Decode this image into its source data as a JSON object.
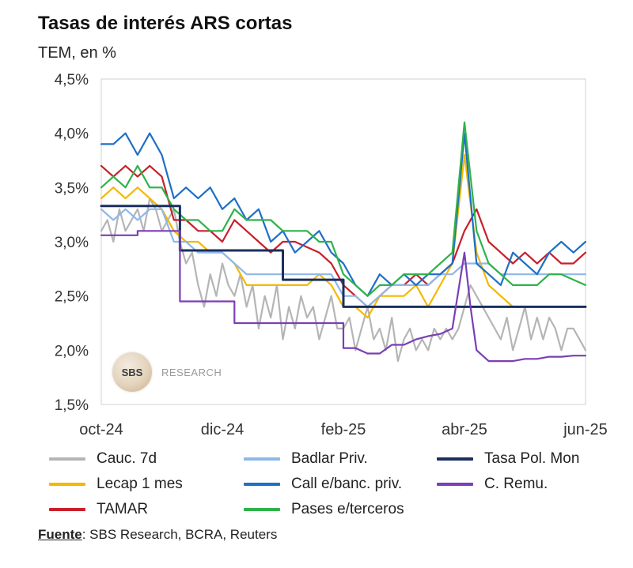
{
  "header": {
    "title": "Tasas de interés ARS cortas",
    "subtitle": "TEM, en %"
  },
  "watermark": {
    "logo_text": "SBS",
    "text": "RESEARCH"
  },
  "source": {
    "label": "Fuente",
    "text": ": SBS Research, BCRA, Reuters"
  },
  "chart_data": {
    "type": "line",
    "title": "Tasas de interés ARS cortas",
    "ylabel": "TEM, en %",
    "ylim": [
      1.5,
      4.5
    ],
    "yticks": [
      1.5,
      2.0,
      2.5,
      3.0,
      3.5,
      4.0,
      4.5
    ],
    "ytick_labels": [
      "1,5%",
      "2,0%",
      "2,5%",
      "3,0%",
      "3,5%",
      "4,0%",
      "4,5%"
    ],
    "xlim": [
      0,
      8
    ],
    "xtick_labels": [
      "oct-24",
      "dic-24",
      "feb-25",
      "abr-25",
      "jun-25"
    ],
    "xticks": [
      0,
      2,
      4,
      6,
      8
    ],
    "x_unit_note_hidden": true,
    "grid": false,
    "legend_position": "bottom",
    "series": [
      {
        "name": "Cauc. 7d",
        "color": "#b5b5b5",
        "x": [
          0,
          0.1,
          0.2,
          0.3,
          0.4,
          0.5,
          0.6,
          0.7,
          0.8,
          0.9,
          1.0,
          1.1,
          1.2,
          1.3,
          1.4,
          1.5,
          1.6,
          1.7,
          1.8,
          1.9,
          2.0,
          2.1,
          2.2,
          2.3,
          2.4,
          2.5,
          2.6,
          2.7,
          2.8,
          2.9,
          3.0,
          3.1,
          3.2,
          3.3,
          3.4,
          3.5,
          3.6,
          3.7,
          3.8,
          3.9,
          4.0,
          4.1,
          4.2,
          4.3,
          4.4,
          4.5,
          4.6,
          4.7,
          4.8,
          4.9,
          5.0,
          5.1,
          5.2,
          5.3,
          5.4,
          5.5,
          5.6,
          5.7,
          5.8,
          5.9,
          6.0,
          6.1,
          6.2,
          6.3,
          6.4,
          6.5,
          6.6,
          6.7,
          6.8,
          6.9,
          7.0,
          7.1,
          7.2,
          7.3,
          7.4,
          7.5,
          7.6,
          7.7,
          7.8,
          7.9,
          8.0
        ],
        "values": [
          3.1,
          3.2,
          3.0,
          3.3,
          3.1,
          3.2,
          3.3,
          3.1,
          3.4,
          3.3,
          3.1,
          3.2,
          3.3,
          3.0,
          2.8,
          2.9,
          2.6,
          2.4,
          2.7,
          2.5,
          2.8,
          2.6,
          2.5,
          2.7,
          2.4,
          2.6,
          2.2,
          2.5,
          2.3,
          2.6,
          2.1,
          2.4,
          2.2,
          2.5,
          2.3,
          2.4,
          2.1,
          2.3,
          2.5,
          2.2,
          2.2,
          2.3,
          2.0,
          2.2,
          2.4,
          2.1,
          2.2,
          2.0,
          2.3,
          1.9,
          2.1,
          2.2,
          2.0,
          2.1,
          2.0,
          2.2,
          2.1,
          2.2,
          2.1,
          2.2,
          2.4,
          2.6,
          2.5,
          2.4,
          2.3,
          2.2,
          2.1,
          2.3,
          2.0,
          2.2,
          2.4,
          2.1,
          2.3,
          2.1,
          2.3,
          2.2,
          2.0,
          2.2,
          2.2,
          2.1,
          2.0
        ]
      },
      {
        "name": "Lecap 1 mes",
        "color": "#f5b800",
        "x": [
          0,
          0.2,
          0.4,
          0.6,
          0.8,
          1.0,
          1.2,
          1.4,
          1.6,
          1.8,
          2.0,
          2.2,
          2.4,
          2.6,
          2.8,
          3.0,
          3.2,
          3.4,
          3.6,
          3.8,
          4.0,
          4.2,
          4.4,
          4.6,
          4.8,
          5.0,
          5.2,
          5.4,
          5.6,
          5.8,
          6.0,
          6.2,
          6.4,
          6.6,
          6.8,
          7.0,
          7.2,
          7.4,
          7.6,
          7.8,
          8.0
        ],
        "values": [
          3.4,
          3.5,
          3.4,
          3.5,
          3.4,
          3.3,
          3.1,
          3.0,
          3.0,
          2.9,
          2.9,
          2.8,
          2.6,
          2.6,
          2.6,
          2.6,
          2.6,
          2.6,
          2.7,
          2.6,
          2.4,
          2.4,
          2.3,
          2.5,
          2.5,
          2.5,
          2.6,
          2.4,
          2.6,
          2.8,
          3.8,
          2.9,
          2.6,
          2.5,
          2.4,
          2.4,
          2.4,
          2.4,
          2.4,
          2.4,
          2.4
        ]
      },
      {
        "name": "TAMAR",
        "color": "#c8202a",
        "x": [
          0,
          0.2,
          0.4,
          0.6,
          0.8,
          1.0,
          1.2,
          1.4,
          1.6,
          1.8,
          2.0,
          2.2,
          2.4,
          2.6,
          2.8,
          3.0,
          3.2,
          3.4,
          3.6,
          3.8,
          4.0,
          4.2,
          4.4,
          4.6,
          4.8,
          5.0,
          5.2,
          5.4,
          5.6,
          5.8,
          6.0,
          6.2,
          6.4,
          6.6,
          6.8,
          7.0,
          7.2,
          7.4,
          7.6,
          7.8,
          8.0
        ],
        "values": [
          3.7,
          3.6,
          3.7,
          3.6,
          3.7,
          3.6,
          3.2,
          3.2,
          3.1,
          3.1,
          3.0,
          3.2,
          3.1,
          3.0,
          2.9,
          3.0,
          3.0,
          2.95,
          2.9,
          2.8,
          2.6,
          2.5,
          2.4,
          2.5,
          2.6,
          2.6,
          2.7,
          2.6,
          2.7,
          2.8,
          3.1,
          3.3,
          3.0,
          2.9,
          2.8,
          2.9,
          2.8,
          2.9,
          2.8,
          2.8,
          2.9
        ]
      },
      {
        "name": "Badlar Priv.",
        "color": "#8fb8e8",
        "x": [
          0,
          0.2,
          0.4,
          0.6,
          0.8,
          1.0,
          1.2,
          1.4,
          1.6,
          1.8,
          2.0,
          2.2,
          2.4,
          2.6,
          2.8,
          3.0,
          3.2,
          3.4,
          3.6,
          3.8,
          4.0,
          4.2,
          4.4,
          4.6,
          4.8,
          5.0,
          5.2,
          5.4,
          5.6,
          5.8,
          6.0,
          6.2,
          6.4,
          6.6,
          6.8,
          7.0,
          7.2,
          7.4,
          7.6,
          7.8,
          8.0
        ],
        "values": [
          3.3,
          3.2,
          3.3,
          3.2,
          3.3,
          3.3,
          3.0,
          3.0,
          2.9,
          2.9,
          2.9,
          2.8,
          2.7,
          2.7,
          2.7,
          2.7,
          2.7,
          2.7,
          2.7,
          2.7,
          2.5,
          2.5,
          2.4,
          2.5,
          2.6,
          2.6,
          2.6,
          2.6,
          2.7,
          2.7,
          2.8,
          2.8,
          2.8,
          2.7,
          2.7,
          2.7,
          2.7,
          2.7,
          2.7,
          2.7,
          2.7
        ]
      },
      {
        "name": "Call e/banc. priv.",
        "color": "#1f6fc6",
        "x": [
          0,
          0.2,
          0.4,
          0.6,
          0.8,
          1.0,
          1.2,
          1.4,
          1.6,
          1.8,
          2.0,
          2.2,
          2.4,
          2.6,
          2.8,
          3.0,
          3.2,
          3.4,
          3.6,
          3.8,
          4.0,
          4.2,
          4.4,
          4.6,
          4.8,
          5.0,
          5.2,
          5.4,
          5.6,
          5.8,
          6.0,
          6.2,
          6.4,
          6.6,
          6.8,
          7.0,
          7.2,
          7.4,
          7.6,
          7.8,
          8.0
        ],
        "values": [
          3.9,
          3.9,
          4.0,
          3.8,
          4.0,
          3.8,
          3.4,
          3.5,
          3.4,
          3.5,
          3.3,
          3.4,
          3.2,
          3.3,
          3.0,
          3.1,
          2.9,
          3.0,
          3.1,
          2.9,
          2.8,
          2.6,
          2.5,
          2.7,
          2.6,
          2.7,
          2.6,
          2.7,
          2.7,
          2.8,
          4.0,
          2.8,
          2.7,
          2.6,
          2.9,
          2.8,
          2.7,
          2.9,
          3.0,
          2.9,
          3.0
        ]
      },
      {
        "name": "Pases e/terceros",
        "color": "#2db34a",
        "x": [
          0,
          0.2,
          0.4,
          0.6,
          0.8,
          1.0,
          1.2,
          1.4,
          1.6,
          1.8,
          2.0,
          2.2,
          2.4,
          2.6,
          2.8,
          3.0,
          3.2,
          3.4,
          3.6,
          3.8,
          4.0,
          4.2,
          4.4,
          4.6,
          4.8,
          5.0,
          5.2,
          5.4,
          5.6,
          5.8,
          6.0,
          6.2,
          6.4,
          6.6,
          6.8,
          7.0,
          7.2,
          7.4,
          7.6,
          7.8,
          8.0
        ],
        "values": [
          3.5,
          3.6,
          3.5,
          3.7,
          3.5,
          3.5,
          3.3,
          3.2,
          3.2,
          3.1,
          3.1,
          3.3,
          3.2,
          3.2,
          3.2,
          3.1,
          3.1,
          3.1,
          3.0,
          3.0,
          2.7,
          2.6,
          2.5,
          2.6,
          2.6,
          2.7,
          2.7,
          2.7,
          2.8,
          2.9,
          4.1,
          3.1,
          2.8,
          2.7,
          2.6,
          2.6,
          2.6,
          2.7,
          2.7,
          2.65,
          2.6
        ]
      },
      {
        "name": "Tasa Pol. Mon",
        "color": "#1a2f5e",
        "x": [
          0,
          1.3,
          1.3,
          2.0,
          2.0,
          3.0,
          3.0,
          4.0,
          4.0,
          8.0
        ],
        "values": [
          3.33,
          3.33,
          2.92,
          2.92,
          2.92,
          2.92,
          2.65,
          2.65,
          2.4,
          2.4
        ]
      },
      {
        "name": "C. Remu.",
        "color": "#7a3fb5",
        "x": [
          0,
          0.6,
          0.6,
          1.3,
          1.3,
          2.0,
          2.0,
          2.2,
          2.2,
          3.0,
          3.0,
          4.0,
          4.0,
          4.2,
          4.4,
          4.6,
          4.8,
          5.0,
          5.2,
          5.4,
          5.6,
          5.8,
          6.0,
          6.1,
          6.2,
          6.4,
          6.6,
          6.8,
          7.0,
          7.2,
          7.4,
          7.6,
          7.8,
          8.0
        ],
        "values": [
          3.06,
          3.06,
          3.1,
          3.1,
          2.45,
          2.45,
          2.45,
          2.45,
          2.25,
          2.25,
          2.25,
          2.25,
          2.02,
          2.02,
          1.97,
          1.97,
          2.05,
          2.05,
          2.1,
          2.13,
          2.15,
          2.2,
          2.9,
          2.4,
          2.0,
          1.9,
          1.9,
          1.9,
          1.92,
          1.92,
          1.94,
          1.94,
          1.95,
          1.95
        ]
      }
    ]
  }
}
